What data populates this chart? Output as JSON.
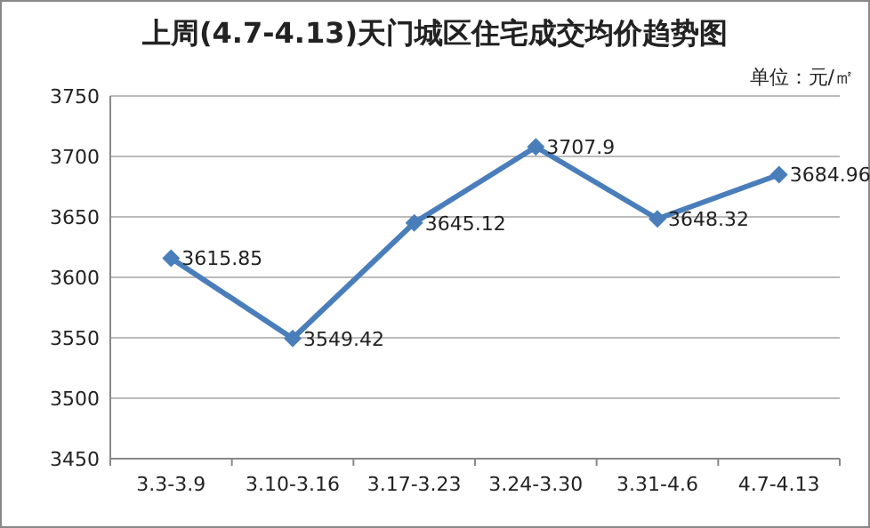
{
  "chart_data": {
    "type": "line",
    "title": "上周(4.7-4.13)天门城区住宅成交均价趋势图",
    "annotations": [
      "单位：元/㎡"
    ],
    "categories": [
      "3.3-3.9",
      "3.10-3.16",
      "3.17-3.23",
      "3.24-3.30",
      "3.31-4.6",
      "4.7-4.13"
    ],
    "series": [
      {
        "color": "#4a7ebb",
        "values": [
          3615.85,
          3549.42,
          3645.12,
          3707.9,
          3648.32,
          3684.96
        ]
      }
    ],
    "ylim": [
      3450,
      3750
    ],
    "yticks": [
      3450,
      3500,
      3550,
      3600,
      3650,
      3700,
      3750
    ],
    "grid": "y",
    "data_labels": true,
    "marker": "diamond",
    "line_style": "solid"
  }
}
